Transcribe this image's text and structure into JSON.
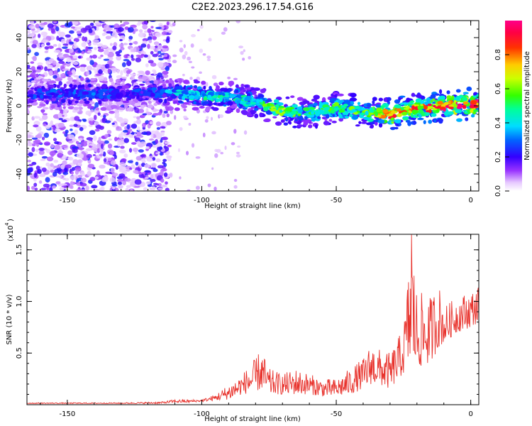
{
  "title": "C2E2.2023.296.17.54.G16",
  "colors": {
    "snr_line": "#e8322c",
    "axes": "#000000",
    "background": "#ffffff"
  },
  "chart_data": [
    {
      "type": "heatmap",
      "xlabel": "Height of straight line (km)",
      "ylabel": "Frequency (Hz)",
      "xlim": [
        -165,
        3
      ],
      "ylim": [
        -50,
        50
      ],
      "xticks": [
        -150,
        -100,
        -50,
        0
      ],
      "yticks": [
        -40,
        -20,
        0,
        20,
        40
      ],
      "colorbar": {
        "label": "Normalized spectral amplitude",
        "range": [
          0,
          1
        ],
        "ticks": [
          "0.0",
          "0.2",
          "0.4",
          "0.6",
          "0.8"
        ],
        "colormap": "rainbow (white-violet-blue-cyan-green-yellow-red-magenta)"
      },
      "ridge": {
        "description": "dominant frequency trace (Hz) vs height (km)",
        "height_km": [
          -165,
          -150,
          -140,
          -130,
          -120,
          -112,
          -100,
          -90,
          -80,
          -70,
          -60,
          -50,
          -40,
          -30,
          -20,
          -10,
          0,
          3
        ],
        "frequency_hz": [
          7,
          7,
          7,
          7,
          8,
          7,
          6,
          5,
          2,
          -3,
          -4,
          -1,
          -3,
          -5,
          -2,
          0,
          1,
          1
        ],
        "peak_amplitude": [
          0.25,
          0.28,
          0.3,
          0.25,
          0.25,
          0.35,
          0.45,
          0.45,
          0.5,
          0.6,
          0.5,
          0.55,
          0.55,
          0.8,
          0.8,
          0.9,
          0.95,
          0.95
        ]
      },
      "noise_region_km": [
        -165,
        -112
      ],
      "grid": false
    },
    {
      "type": "line",
      "xlabel": "Height of straight line (km)",
      "ylabel": "SNR (10 * v/v)",
      "ylabel_scale": "(x10",
      "ylabel_exponent": "4",
      "xlim": [
        -165,
        3
      ],
      "ylim": [
        0,
        1.65
      ],
      "xticks": [
        -150,
        -100,
        -50,
        0
      ],
      "yticks": [
        "0.5",
        "1.0",
        "1.5"
      ],
      "grid": false,
      "series": [
        {
          "values_x10e4_by_height": {
            "height_km": [
              -165,
              -150,
              -130,
              -115,
              -110,
              -105,
              -100,
              -95,
              -90,
              -85,
              -80,
              -78,
              -75,
              -70,
              -65,
              -60,
              -55,
              -50,
              -45,
              -40,
              -37,
              -35,
              -30,
              -25,
              -22,
              -20,
              -15,
              -12,
              -10,
              -5,
              0,
              3
            ],
            "snr_envelope": [
              0.02,
              0.02,
              0.02,
              0.03,
              0.05,
              0.05,
              0.05,
              0.1,
              0.2,
              0.3,
              0.45,
              0.55,
              0.35,
              0.3,
              0.35,
              0.3,
              0.25,
              0.25,
              0.35,
              0.45,
              0.6,
              0.55,
              0.5,
              0.75,
              1.65,
              1.1,
              1.05,
              1.2,
              0.95,
              1.05,
              1.1,
              1.15
            ],
            "snr_baseline": [
              0.01,
              0.01,
              0.01,
              0.01,
              0.02,
              0.02,
              0.03,
              0.04,
              0.05,
              0.1,
              0.12,
              0.15,
              0.1,
              0.1,
              0.1,
              0.1,
              0.08,
              0.08,
              0.1,
              0.15,
              0.2,
              0.2,
              0.15,
              0.3,
              0.4,
              0.35,
              0.4,
              0.55,
              0.6,
              0.7,
              0.75,
              0.8
            ]
          }
        }
      ]
    }
  ]
}
